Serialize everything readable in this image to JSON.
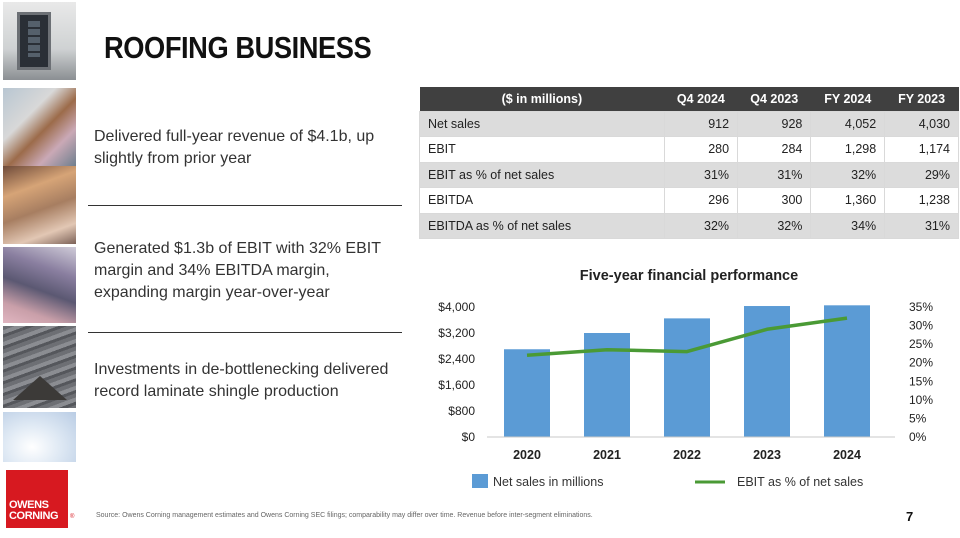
{
  "page": {
    "title": "ROOFING BUSINESS",
    "page_number": "7",
    "footnote": "Source: Owens Corning management estimates and Owens Corning SEC filings; comparability may differ over time. Revenue before inter-segment eliminations."
  },
  "logo": {
    "text": "OWENS\nCORNING",
    "reg": "®",
    "color": "#d71920"
  },
  "statements": [
    "Delivered full-year revenue of $4.1b, up slightly from prior year",
    "Generated $1.3b of EBIT with 32% EBIT margin and 34% EBITDA margin, expanding margin year-over-year",
    "Investments in de-bottlenecking delivered record laminate shingle production"
  ],
  "table": {
    "headers": [
      "($ in millions)",
      "Q4 2024",
      "Q4 2023",
      "FY 2024",
      "FY 2023"
    ],
    "rows": [
      [
        "Net sales",
        "912",
        "928",
        "4,052",
        "4,030"
      ],
      [
        "EBIT",
        "280",
        "284",
        "1,298",
        "1,174"
      ],
      [
        "EBIT as % of net sales",
        "31%",
        "31%",
        "32%",
        "29%"
      ],
      [
        "EBITDA",
        "296",
        "300",
        "1,360",
        "1,238"
      ],
      [
        "EBITDA as % of net sales",
        "32%",
        "32%",
        "34%",
        "31%"
      ]
    ]
  },
  "chart_data": {
    "type": "bar",
    "title": "Five-year financial performance",
    "categories": [
      "2020",
      "2021",
      "2022",
      "2023",
      "2024"
    ],
    "series": [
      {
        "name": "Net sales in millions",
        "type": "bar",
        "axis": "left",
        "color": "#5b9bd5",
        "values": [
          2700,
          3200,
          3650,
          4030,
          4052
        ]
      },
      {
        "name": "EBIT as % of net sales",
        "type": "line",
        "axis": "right",
        "color": "#4a9a35",
        "values": [
          22,
          23.5,
          23,
          29,
          32
        ]
      }
    ],
    "y_left": {
      "range": [
        0,
        4000
      ],
      "ticks": [
        "$0",
        "$800",
        "$1,600",
        "$2,400",
        "$3,200",
        "$4,000"
      ],
      "tick_values": [
        0,
        800,
        1600,
        2400,
        3200,
        4000
      ]
    },
    "y_right": {
      "range": [
        0,
        35
      ],
      "ticks": [
        "0%",
        "5%",
        "10%",
        "15%",
        "20%",
        "25%",
        "30%",
        "35%"
      ],
      "tick_values": [
        0,
        5,
        10,
        15,
        20,
        25,
        30,
        35
      ]
    },
    "grid": false,
    "legend": "bottom"
  }
}
